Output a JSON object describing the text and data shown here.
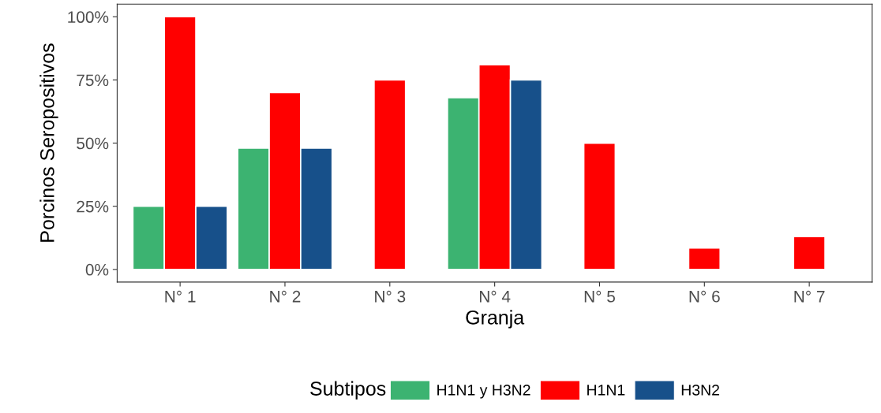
{
  "chart_data": {
    "type": "bar",
    "xlabel": "Granja",
    "ylabel": "Porcinos Seropositivos",
    "legend_title": "Subtipos",
    "legend": "bottom",
    "grid": false,
    "categories": [
      "N° 1",
      "N° 2",
      "N° 3",
      "N° 4",
      "N° 5",
      "N° 6",
      "N° 7"
    ],
    "series": [
      {
        "name": "H1N1 y H3N2",
        "color": "#3cb371",
        "values": [
          25,
          48,
          null,
          68,
          null,
          null,
          null
        ]
      },
      {
        "name": "H1N1",
        "color": "#ff0000",
        "values": [
          100,
          70,
          75,
          81,
          50,
          8.5,
          13
        ]
      },
      {
        "name": "H3N2",
        "color": "#17508a",
        "values": [
          25,
          48,
          null,
          75,
          null,
          null,
          null
        ]
      }
    ],
    "ylim": [
      -5,
      105
    ],
    "yticks": [
      {
        "value": 0,
        "label": "0%"
      },
      {
        "value": 25,
        "label": "25%"
      },
      {
        "value": 50,
        "label": "50%"
      },
      {
        "value": 75,
        "label": "75%"
      },
      {
        "value": 100,
        "label": "100%"
      }
    ]
  }
}
